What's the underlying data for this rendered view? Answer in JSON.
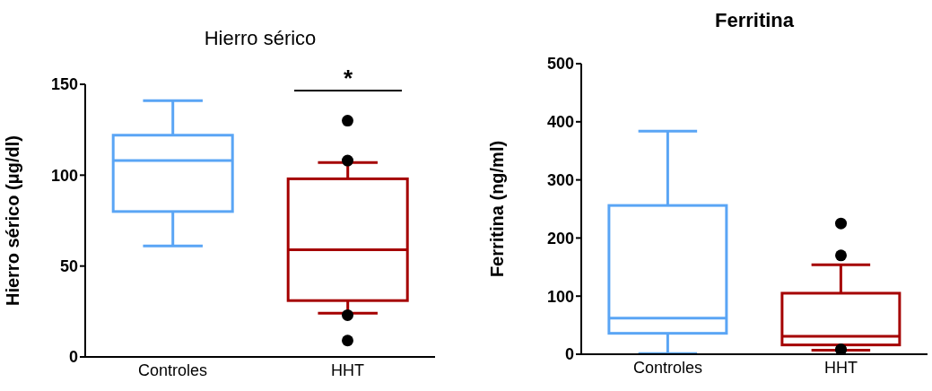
{
  "chart_data": [
    {
      "type": "box",
      "title": "Hierro sérico",
      "ylabel": "Hierro sérico (μg/dl)",
      "categories": [
        "Controles",
        "HHT"
      ],
      "colors": [
        "#5aa5f5",
        "#a50000"
      ],
      "boxes": [
        {
          "low": 61,
          "q1": 80,
          "median": 108,
          "q3": 122,
          "high": 141
        },
        {
          "low": 24,
          "q1": 31,
          "median": 59,
          "q3": 98,
          "high": 107,
          "outliers": [
            130,
            108,
            23,
            9
          ]
        }
      ],
      "ylim": [
        0,
        150
      ],
      "yticks": [
        0,
        50,
        100,
        150
      ],
      "annotations": [
        "*"
      ]
    },
    {
      "type": "box",
      "title": "Ferritina",
      "ylabel": "Ferritina (ng/ml)",
      "categories": [
        "Controles",
        "HHT"
      ],
      "colors": [
        "#5aa5f5",
        "#a50000"
      ],
      "boxes": [
        {
          "low": 1,
          "q1": 36,
          "median": 62,
          "q3": 256,
          "high": 384
        },
        {
          "low": 7,
          "q1": 16,
          "median": 31,
          "q3": 105,
          "high": 154,
          "outliers": [
            225,
            170,
            8,
            8
          ]
        }
      ],
      "ylim": [
        0,
        500
      ],
      "yticks": [
        0,
        100,
        200,
        300,
        400,
        500
      ]
    }
  ]
}
